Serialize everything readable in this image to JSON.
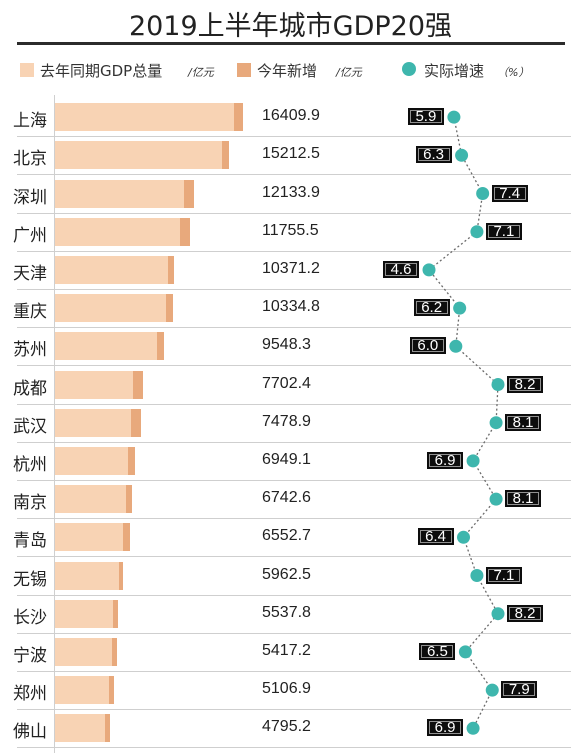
{
  "chart_data": {
    "type": "bar",
    "title": "2019上半年城市GDP20强",
    "categories": [
      "上海",
      "北京",
      "深圳",
      "广州",
      "天津",
      "重庆",
      "苏州",
      "成都",
      "武汉",
      "杭州",
      "南京",
      "青岛",
      "无锡",
      "长沙",
      "宁波",
      "郑州",
      "佛山"
    ],
    "series": [
      {
        "name": "去年同期GDP总量",
        "unit": "/亿元",
        "values": [
          15600,
          14600,
          11300,
          10900,
          9900,
          9700,
          8900,
          6800,
          6600,
          6400,
          6200,
          5900,
          5600,
          5100,
          5000,
          4700,
          4400
        ]
      },
      {
        "name": "今年新增",
        "unit": "/亿元",
        "values": [
          809.9,
          612.5,
          833.9,
          855.5,
          471.2,
          634.8,
          648.3,
          902.4,
          878.9,
          549.1,
          542.6,
          652.7,
          362.5,
          437.8,
          417.2,
          406.9,
          395.2
        ]
      },
      {
        "name": "实际增速",
        "unit": "（%）",
        "values": [
          5.9,
          6.3,
          7.4,
          7.1,
          4.6,
          6.2,
          6.0,
          8.2,
          8.1,
          6.9,
          8.1,
          6.4,
          7.1,
          8.2,
          6.5,
          7.9,
          6.9
        ]
      }
    ],
    "totals": [
      "16409.9",
      "15212.5",
      "12133.9",
      "11755.5",
      "10371.2",
      "10334.8",
      "9548.3",
      "7702.4",
      "7478.9",
      "6949.1",
      "6742.6",
      "6552.7",
      "5962.5",
      "5537.8",
      "5417.2",
      "5106.9",
      "4795.2"
    ],
    "growth_labels": [
      "5.9",
      "6.3",
      "7.4",
      "7.1",
      "4.6",
      "6.2",
      "6.0",
      "8.2",
      "8.1",
      "6.9",
      "8.1",
      "6.4",
      "7.1",
      "8.2",
      "6.5",
      "7.9",
      "6.9"
    ],
    "growth_label_side": [
      "left",
      "left",
      "right",
      "right",
      "left",
      "left",
      "left",
      "right",
      "right",
      "left",
      "right",
      "left",
      "right",
      "right",
      "left",
      "right",
      "left"
    ],
    "xlim": [
      0,
      16409.9
    ],
    "growth_axis_range": [
      4.6,
      8.2
    ],
    "colors": {
      "base": "#f8d3b4",
      "increase": "#e8a97c",
      "growth_dot": "#3eb6ad",
      "growth_line": "#6a6a6a",
      "label_bg": "#0d0d0d",
      "rule": "#2b2b2b",
      "grid": "#cfcfcf"
    }
  },
  "legend": {
    "base_label": "去年同期GDP总量",
    "base_unit": "/亿元",
    "inc_label": "今年新增",
    "inc_unit": "/亿元",
    "growth_label": "实际增速",
    "growth_unit": "（%）"
  }
}
